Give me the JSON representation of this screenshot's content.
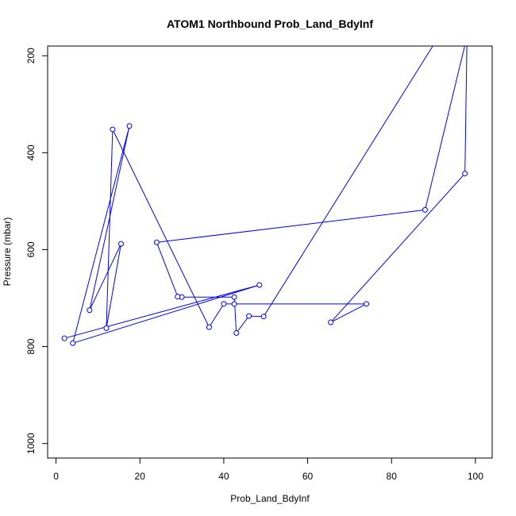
{
  "chart_data": {
    "type": "line",
    "title": "ATOM1 Northbound Prob_Land_BdyInf",
    "xlabel": "Prob_Land_BdyInf",
    "ylabel": "Pressure (mbar)",
    "xlim": [
      -2,
      104
    ],
    "ylim": [
      1030,
      180
    ],
    "y_inverted": true,
    "x_ticks": [
      0,
      20,
      40,
      60,
      80,
      100
    ],
    "y_ticks": [
      200,
      400,
      600,
      800,
      1000
    ],
    "grid": false,
    "series_color": "#0000ff",
    "points": [
      {
        "x": 92,
        "y": 150
      },
      {
        "x": 49.5,
        "y": 738
      },
      {
        "x": 46,
        "y": 737
      },
      {
        "x": 43,
        "y": 772
      },
      {
        "x": 42.5,
        "y": 698
      },
      {
        "x": 30,
        "y": 698
      },
      {
        "x": 29,
        "y": 697
      },
      {
        "x": 24,
        "y": 585
      },
      {
        "x": 88,
        "y": 518
      },
      {
        "x": 98,
        "y": 160
      },
      {
        "x": 98,
        "y": 160
      },
      {
        "x": 97.5,
        "y": 443
      },
      {
        "x": 65.5,
        "y": 750
      },
      {
        "x": 74,
        "y": 712
      },
      {
        "x": 42.5,
        "y": 712
      },
      {
        "x": 40,
        "y": 712
      },
      {
        "x": 36.5,
        "y": 760
      },
      {
        "x": 13.5,
        "y": 352
      },
      {
        "x": 12,
        "y": 762
      },
      {
        "x": 15.5,
        "y": 588
      },
      {
        "x": 8,
        "y": 725
      },
      {
        "x": 17.5,
        "y": 345
      },
      {
        "x": 4,
        "y": 793
      },
      {
        "x": 48.5,
        "y": 673
      },
      {
        "x": 2,
        "y": 783
      }
    ],
    "markers_only": [
      {
        "x": 49.5,
        "y": 738
      },
      {
        "x": 46,
        "y": 737
      },
      {
        "x": 43,
        "y": 772
      },
      {
        "x": 42.5,
        "y": 698
      },
      {
        "x": 30,
        "y": 698
      },
      {
        "x": 29,
        "y": 697
      },
      {
        "x": 24,
        "y": 585
      },
      {
        "x": 88,
        "y": 518
      },
      {
        "x": 97.5,
        "y": 443
      },
      {
        "x": 65.5,
        "y": 750
      },
      {
        "x": 74,
        "y": 712
      },
      {
        "x": 40,
        "y": 712
      },
      {
        "x": 36.5,
        "y": 760
      },
      {
        "x": 13.5,
        "y": 352
      },
      {
        "x": 12,
        "y": 762
      },
      {
        "x": 15.5,
        "y": 588
      },
      {
        "x": 8,
        "y": 725
      },
      {
        "x": 17.5,
        "y": 345
      },
      {
        "x": 4,
        "y": 793
      },
      {
        "x": 48.5,
        "y": 673
      },
      {
        "x": 2,
        "y": 783
      },
      {
        "x": 42.5,
        "y": 712
      }
    ]
  }
}
